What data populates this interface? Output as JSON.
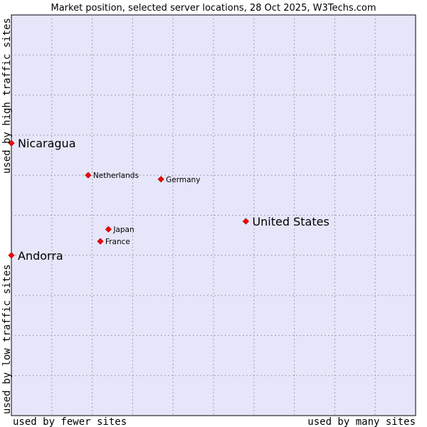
{
  "chart_data": {
    "type": "scatter",
    "title": "Market position, selected server locations, 28 Oct 2025, W3Techs.com",
    "xlabel_left": "used by fewer sites",
    "xlabel_right": "used by many sites",
    "ylabel_top": "used by high traffic sites",
    "ylabel_bottom": "used by low traffic sites",
    "xlim": [
      0,
      100
    ],
    "ylim": [
      0,
      100
    ],
    "grid": true,
    "point_color": "#ff0000",
    "plot_background": "#e6e6fa",
    "points": [
      {
        "name": "Nicaragua",
        "x": 0,
        "y": 68,
        "size": "large"
      },
      {
        "name": "Netherlands",
        "x": 19,
        "y": 60,
        "size": "small"
      },
      {
        "name": "Germany",
        "x": 37,
        "y": 59,
        "size": "small"
      },
      {
        "name": "United States",
        "x": 58,
        "y": 48.5,
        "size": "large"
      },
      {
        "name": "Japan",
        "x": 24,
        "y": 46.5,
        "size": "small"
      },
      {
        "name": "France",
        "x": 22,
        "y": 43.5,
        "size": "small"
      },
      {
        "name": "Andorra",
        "x": 0,
        "y": 40,
        "size": "large"
      }
    ]
  }
}
